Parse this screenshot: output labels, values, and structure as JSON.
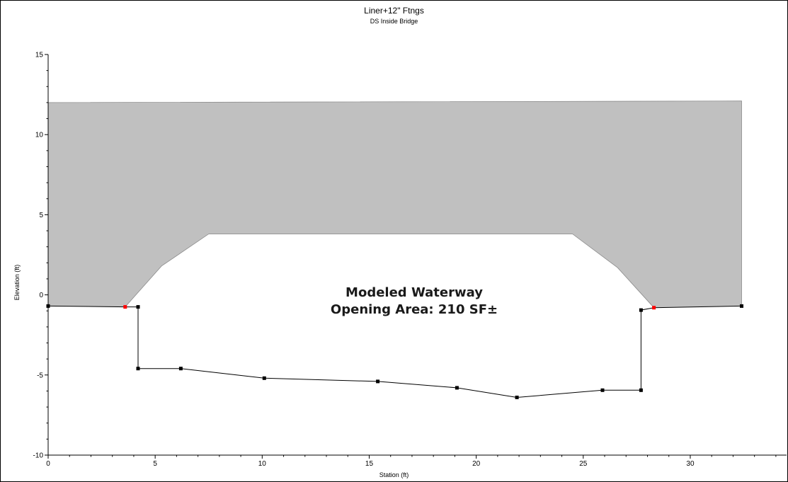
{
  "chart_data": {
    "type": "area",
    "title": "Liner+12\" Ftngs",
    "subtitle": "DS Inside Bridge",
    "xlabel": "Station (ft)",
    "ylabel": "Elevation (ft)",
    "xlim": [
      0,
      34.5
    ],
    "ylim": [
      -10,
      15
    ],
    "x_ticks": [
      0,
      5,
      10,
      15,
      20,
      25,
      30
    ],
    "y_ticks": [
      -10,
      -5,
      0,
      5,
      10,
      15
    ],
    "grid": false,
    "ground_series": {
      "points": [
        [
          0.0,
          -0.7
        ],
        [
          3.6,
          -0.75
        ],
        [
          4.2,
          -0.75
        ],
        [
          4.2,
          -4.6
        ],
        [
          6.2,
          -4.6
        ],
        [
          10.1,
          -5.2
        ],
        [
          15.4,
          -5.4
        ],
        [
          19.1,
          -5.8
        ],
        [
          21.9,
          -6.4
        ],
        [
          25.9,
          -5.95
        ],
        [
          27.7,
          -5.95
        ],
        [
          27.7,
          -0.95
        ],
        [
          28.3,
          -0.8
        ],
        [
          32.4,
          -0.7
        ]
      ]
    },
    "bank_stations": [
      [
        3.6,
        -0.75
      ],
      [
        28.3,
        -0.8
      ]
    ],
    "bridge_deck": {
      "top_chord": [
        [
          0.0,
          12.0
        ],
        [
          32.4,
          12.1
        ]
      ],
      "low_chord": [
        [
          3.6,
          -0.75
        ],
        [
          5.3,
          1.8
        ],
        [
          7.5,
          3.8
        ],
        [
          24.5,
          3.8
        ],
        [
          26.6,
          1.7
        ],
        [
          28.3,
          -0.8
        ]
      ]
    },
    "annotation": [
      "Modeled Waterway",
      "Opening Area: 210 SF±"
    ],
    "colors": {
      "deck_fill": "#c0c0c0",
      "ground_line": "#000000",
      "bank_marker": "#ff0000",
      "point_marker": "#000000"
    }
  }
}
